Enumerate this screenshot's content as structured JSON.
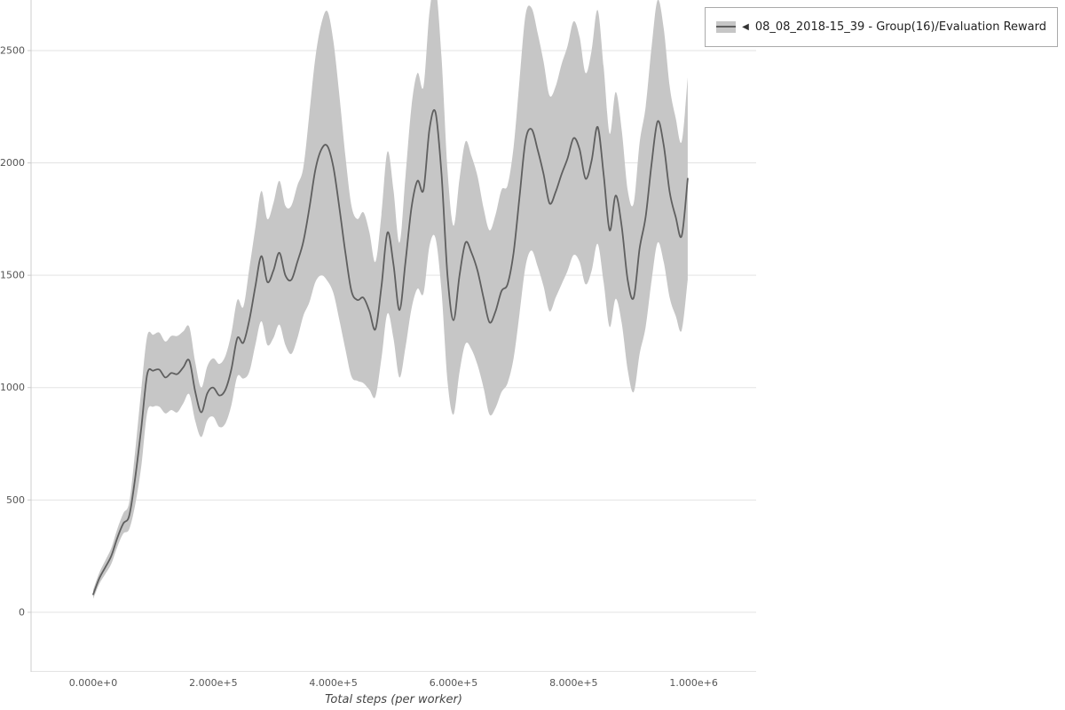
{
  "page": {
    "background": "#ffffff"
  },
  "legend": {
    "arrow": "◀",
    "label": "08_08_2018-15_39 - Group(16)/Evaluation Reward"
  },
  "chart_data": {
    "type": "line",
    "title": "",
    "xlabel": "Total steps (per worker)",
    "ylabel": "",
    "grid": "horizontal",
    "legend_position": "top-right",
    "xlim": [
      -103500,
      1104000
    ],
    "ylim": [
      -265,
      2725
    ],
    "xticks": {
      "values": [
        0,
        200000,
        400000,
        600000,
        800000,
        1000000
      ],
      "labels": [
        "0.000e+0",
        "2.000e+5",
        "4.000e+5",
        "6.000e+5",
        "8.000e+5",
        "1.000e+6"
      ]
    },
    "yticks": {
      "values": [
        0,
        500,
        1000,
        1500,
        2000,
        2500
      ],
      "labels": [
        "0",
        "500",
        "1000",
        "1500",
        "2000",
        "2500"
      ]
    },
    "colors": {
      "line": "#5f5f5f",
      "band": "#c6c6c6",
      "grid": "#e3e3e3",
      "axis": "#cccccc",
      "tick_text": "#555555"
    },
    "series": [
      {
        "name": "08_08_2018-15_39 - Group(16)/Evaluation Reward",
        "band_rule": "mean ± std",
        "x_start": 0,
        "x_step": 10000,
        "mean": [
          80,
          150,
          200,
          250,
          330,
          395,
          430,
          600,
          820,
          1060,
          1075,
          1080,
          1045,
          1065,
          1060,
          1090,
          1120,
          980,
          890,
          975,
          1000,
          965,
          990,
          1080,
          1220,
          1200,
          1300,
          1450,
          1585,
          1470,
          1520,
          1600,
          1500,
          1480,
          1560,
          1650,
          1800,
          1970,
          2060,
          2075,
          1980,
          1800,
          1600,
          1430,
          1390,
          1400,
          1340,
          1260,
          1450,
          1690,
          1550,
          1345,
          1560,
          1800,
          1920,
          1880,
          2150,
          2225,
          1950,
          1500,
          1300,
          1500,
          1645,
          1600,
          1520,
          1400,
          1290,
          1340,
          1430,
          1460,
          1600,
          1850,
          2100,
          2150,
          2060,
          1950,
          1820,
          1870,
          1950,
          2020,
          2110,
          2060,
          1930,
          2010,
          2160,
          1950,
          1700,
          1855,
          1720,
          1480,
          1400,
          1620,
          1760,
          2000,
          2185,
          2080,
          1870,
          1760,
          1675,
          1930
        ],
        "std": [
          20,
          25,
          30,
          35,
          40,
          45,
          60,
          120,
          170,
          170,
          160,
          165,
          160,
          165,
          170,
          160,
          150,
          130,
          110,
          120,
          130,
          140,
          150,
          160,
          170,
          160,
          230,
          260,
          290,
          280,
          300,
          320,
          310,
          330,
          340,
          330,
          420,
          500,
          560,
          600,
          560,
          500,
          430,
          380,
          360,
          380,
          350,
          300,
          320,
          360,
          330,
          300,
          380,
          450,
          480,
          460,
          520,
          560,
          520,
          470,
          420,
          430,
          450,
          430,
          420,
          400,
          410,
          430,
          450,
          440,
          470,
          520,
          560,
          540,
          520,
          500,
          480,
          470,
          490,
          500,
          520,
          500,
          470,
          490,
          520,
          480,
          430,
          460,
          430,
          400,
          420,
          470,
          490,
          520,
          540,
          520,
          470,
          440,
          420,
          450
        ]
      }
    ]
  }
}
